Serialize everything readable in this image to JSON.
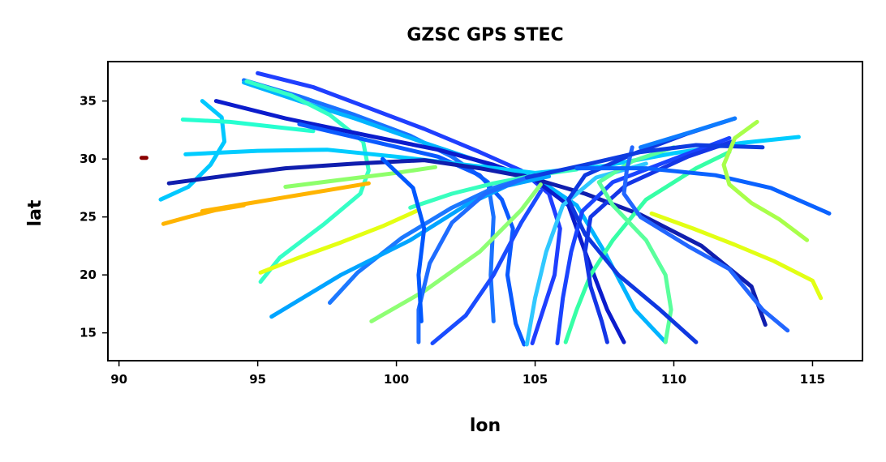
{
  "chart_data": {
    "type": "scatter",
    "title": "GZSC GPS STEC",
    "xlabel": "lon",
    "ylabel": "lat",
    "xlim": [
      89.6,
      116.8
    ],
    "ylim": [
      12.6,
      38.4
    ],
    "xticks": [
      90,
      95,
      100,
      105,
      110,
      115
    ],
    "yticks": [
      15,
      20,
      25,
      30,
      35
    ],
    "grid": false,
    "legend": "none",
    "colormap": "jet",
    "tracks": [
      {
        "color": "#1f3fff",
        "points": [
          [
            95.0,
            37.4
          ],
          [
            97.0,
            36.2
          ],
          [
            99.0,
            34.4
          ],
          [
            101.0,
            32.6
          ],
          [
            103.0,
            30.6
          ],
          [
            104.5,
            29.0
          ],
          [
            105.5,
            27.0
          ],
          [
            105.9,
            24.0
          ],
          [
            105.7,
            20.0
          ],
          [
            104.9,
            14.1
          ]
        ]
      },
      {
        "color": "#1a72ff",
        "points": [
          [
            94.5,
            36.8
          ],
          [
            96.5,
            35.4
          ],
          [
            98.5,
            33.8
          ],
          [
            100.5,
            32.0
          ],
          [
            102.0,
            30.2
          ],
          [
            103.3,
            28.0
          ],
          [
            103.5,
            25.0
          ],
          [
            103.4,
            20.0
          ],
          [
            103.5,
            16.0
          ]
        ]
      },
      {
        "color": "#00b4ff",
        "points": [
          [
            94.5,
            36.6
          ],
          [
            96.5,
            35.0
          ],
          [
            98.5,
            33.5
          ],
          [
            101.0,
            31.4
          ],
          [
            103.5,
            29.4
          ],
          [
            105.0,
            28.4
          ],
          [
            106.5,
            26.0
          ],
          [
            107.5,
            22.0
          ],
          [
            108.6,
            17.0
          ],
          [
            109.7,
            14.2
          ]
        ]
      },
      {
        "color": "#35ffc6",
        "points": [
          [
            94.6,
            36.7
          ],
          [
            96.2,
            35.5
          ],
          [
            97.6,
            33.8
          ],
          [
            98.8,
            31.5
          ],
          [
            99.0,
            29.0
          ],
          [
            98.7,
            27.0
          ],
          [
            97.4,
            24.4
          ],
          [
            95.8,
            21.5
          ],
          [
            95.1,
            19.4
          ]
        ]
      },
      {
        "color": "#0b1ccc",
        "points": [
          [
            93.5,
            35.0
          ],
          [
            96.0,
            33.5
          ],
          [
            99.0,
            32.0
          ],
          [
            101.5,
            30.8
          ],
          [
            103.5,
            29.5
          ],
          [
            105.0,
            28.2
          ],
          [
            106.2,
            26.0
          ],
          [
            106.8,
            22.0
          ],
          [
            107.6,
            17.0
          ],
          [
            108.2,
            14.2
          ]
        ]
      },
      {
        "color": "#00c8ff",
        "points": [
          [
            93.0,
            35.0
          ],
          [
            93.7,
            33.6
          ],
          [
            93.8,
            31.5
          ],
          [
            93.3,
            29.5
          ],
          [
            92.5,
            27.6
          ],
          [
            91.5,
            26.5
          ]
        ]
      },
      {
        "color": "#26ffd0",
        "points": [
          [
            92.3,
            33.4
          ],
          [
            94.0,
            33.2
          ],
          [
            95.5,
            32.8
          ],
          [
            97.0,
            32.4
          ]
        ]
      },
      {
        "color": "#0a5aff",
        "points": [
          [
            96.5,
            33.0
          ],
          [
            99.0,
            31.6
          ],
          [
            101.5,
            30.2
          ],
          [
            103.0,
            28.6
          ],
          [
            103.8,
            26.5
          ],
          [
            104.2,
            24.0
          ],
          [
            104.0,
            20.0
          ],
          [
            104.3,
            15.8
          ],
          [
            104.6,
            14.0
          ]
        ]
      },
      {
        "color": "#00ccff",
        "points": [
          [
            92.4,
            30.4
          ],
          [
            95.0,
            30.7
          ],
          [
            97.5,
            30.8
          ],
          [
            100.0,
            30.2
          ],
          [
            102.5,
            29.5
          ],
          [
            105.0,
            28.8
          ],
          [
            107.5,
            29.4
          ],
          [
            110.0,
            30.5
          ],
          [
            112.5,
            31.4
          ],
          [
            114.5,
            31.9
          ]
        ]
      },
      {
        "color": "#101eae",
        "points": [
          [
            91.8,
            27.9
          ],
          [
            94.0,
            28.6
          ],
          [
            96.0,
            29.2
          ],
          [
            98.5,
            29.6
          ],
          [
            101.0,
            29.9
          ],
          [
            103.0,
            29.2
          ],
          [
            104.8,
            28.4
          ],
          [
            106.8,
            27.0
          ],
          [
            108.8,
            25.2
          ],
          [
            111.0,
            22.5
          ],
          [
            112.8,
            19.0
          ],
          [
            113.3,
            15.7
          ]
        ]
      },
      {
        "color": "#ffb400",
        "points": [
          [
            91.6,
            24.4
          ],
          [
            92.5,
            25.0
          ],
          [
            93.5,
            25.6
          ],
          [
            94.5,
            26.0
          ]
        ]
      },
      {
        "color": "#ffb400",
        "points": [
          [
            93.0,
            25.5
          ],
          [
            94.5,
            26.1
          ],
          [
            96.0,
            26.7
          ],
          [
            97.5,
            27.3
          ],
          [
            99.0,
            27.9
          ]
        ]
      },
      {
        "color": "#8eff6a",
        "points": [
          [
            96.0,
            27.6
          ],
          [
            98.0,
            28.2
          ],
          [
            100.0,
            28.8
          ],
          [
            101.4,
            29.3
          ]
        ]
      },
      {
        "color": "#e4ff12",
        "points": [
          [
            95.1,
            20.2
          ],
          [
            96.5,
            21.5
          ],
          [
            98.0,
            22.8
          ],
          [
            99.5,
            24.2
          ],
          [
            100.8,
            25.6
          ]
        ]
      },
      {
        "color": "#38ffbe",
        "points": [
          [
            100.5,
            25.8
          ],
          [
            102.0,
            27.0
          ],
          [
            103.5,
            27.9
          ],
          [
            105.0,
            28.6
          ],
          [
            106.5,
            29.1
          ]
        ]
      },
      {
        "color": "#1c78ff",
        "points": [
          [
            97.6,
            17.6
          ],
          [
            98.6,
            20.2
          ],
          [
            100.2,
            23.2
          ],
          [
            102.0,
            25.8
          ],
          [
            103.5,
            27.5
          ],
          [
            105.0,
            28.6
          ]
        ]
      },
      {
        "color": "#00a4ff",
        "points": [
          [
            95.5,
            16.4
          ],
          [
            98.0,
            20.0
          ],
          [
            100.5,
            23.0
          ],
          [
            102.5,
            26.0
          ],
          [
            104.0,
            27.7
          ],
          [
            105.5,
            28.5
          ]
        ]
      },
      {
        "color": "#8eff74",
        "points": [
          [
            99.1,
            16.0
          ],
          [
            101.0,
            18.6
          ],
          [
            103.0,
            22.0
          ],
          [
            104.5,
            25.6
          ],
          [
            105.2,
            27.8
          ]
        ]
      },
      {
        "color": "#1e6cff",
        "points": [
          [
            100.8,
            14.2
          ],
          [
            100.8,
            17.0
          ],
          [
            101.2,
            21.0
          ],
          [
            102.0,
            24.5
          ],
          [
            103.2,
            27.0
          ],
          [
            104.8,
            28.5
          ]
        ]
      },
      {
        "color": "#0058ff",
        "points": [
          [
            99.5,
            30.0
          ],
          [
            100.6,
            27.5
          ],
          [
            101.0,
            24.0
          ],
          [
            100.8,
            20.0
          ],
          [
            100.9,
            16.0
          ]
        ]
      },
      {
        "color": "#1a4cff",
        "points": [
          [
            101.3,
            14.1
          ],
          [
            102.5,
            16.5
          ],
          [
            103.5,
            20.0
          ],
          [
            104.5,
            24.5
          ],
          [
            105.2,
            27.2
          ]
        ]
      },
      {
        "color": "#30c8ff",
        "points": [
          [
            104.7,
            14.0
          ],
          [
            105.0,
            18.0
          ],
          [
            105.4,
            22.0
          ],
          [
            106.0,
            26.0
          ],
          [
            107.2,
            28.4
          ],
          [
            109.0,
            29.6
          ]
        ]
      },
      {
        "color": "#1a44ff",
        "points": [
          [
            105.8,
            14.1
          ],
          [
            106.0,
            18.0
          ],
          [
            106.3,
            22.0
          ],
          [
            106.7,
            25.5
          ],
          [
            107.8,
            28.0
          ],
          [
            110.0,
            30.0
          ],
          [
            112.0,
            31.8
          ]
        ]
      },
      {
        "color": "#36ffa6",
        "points": [
          [
            106.1,
            14.2
          ],
          [
            106.5,
            17.0
          ],
          [
            107.0,
            20.0
          ],
          [
            107.8,
            23.0
          ],
          [
            109.0,
            26.5
          ],
          [
            110.8,
            29.2
          ],
          [
            112.0,
            30.6
          ]
        ]
      },
      {
        "color": "#1436e6",
        "points": [
          [
            107.6,
            14.2
          ],
          [
            107.4,
            16.0
          ],
          [
            107.0,
            19.0
          ],
          [
            106.8,
            22.0
          ],
          [
            107.0,
            25.0
          ],
          [
            108.3,
            27.8
          ],
          [
            110.5,
            30.2
          ],
          [
            112.1,
            31.5
          ]
        ]
      },
      {
        "color": "#5aff9c",
        "points": [
          [
            109.7,
            14.2
          ],
          [
            109.9,
            17.0
          ],
          [
            109.7,
            20.0
          ],
          [
            109.0,
            23.0
          ],
          [
            107.8,
            26.0
          ],
          [
            107.3,
            28.0
          ],
          [
            108.5,
            29.8
          ],
          [
            110.0,
            31.0
          ]
        ]
      },
      {
        "color": "#0f38e0",
        "points": [
          [
            110.8,
            14.2
          ],
          [
            109.5,
            17.0
          ],
          [
            108.0,
            20.0
          ],
          [
            106.8,
            23.5
          ],
          [
            106.2,
            26.5
          ],
          [
            106.8,
            28.6
          ],
          [
            108.5,
            30.4
          ],
          [
            110.5,
            32.2
          ],
          [
            112.2,
            33.5
          ]
        ]
      },
      {
        "color": "#2266ff",
        "points": [
          [
            108.5,
            31.0
          ],
          [
            108.3,
            29.0
          ],
          [
            108.2,
            27.0
          ],
          [
            108.8,
            25.0
          ],
          [
            110.5,
            22.5
          ],
          [
            112.0,
            20.5
          ],
          [
            113.2,
            17.0
          ],
          [
            114.1,
            15.2
          ]
        ]
      },
      {
        "color": "#0e7cff",
        "points": [
          [
            108.8,
            31.0
          ],
          [
            110.6,
            32.3
          ],
          [
            112.2,
            33.5
          ]
        ]
      },
      {
        "color": "#0e3ce0",
        "points": [
          [
            104.7,
            28.4
          ],
          [
            106.8,
            29.5
          ],
          [
            108.8,
            30.6
          ],
          [
            110.8,
            31.2
          ],
          [
            113.2,
            31.0
          ]
        ]
      },
      {
        "color": "#0a62ff",
        "points": [
          [
            106.5,
            29.2
          ],
          [
            109.0,
            29.2
          ],
          [
            111.5,
            28.6
          ],
          [
            113.5,
            27.5
          ],
          [
            115.6,
            25.3
          ]
        ]
      },
      {
        "color": "#a8ff4a",
        "points": [
          [
            113.0,
            33.2
          ],
          [
            112.2,
            31.8
          ],
          [
            111.8,
            29.5
          ],
          [
            112.0,
            27.8
          ],
          [
            112.8,
            26.2
          ],
          [
            113.8,
            24.8
          ],
          [
            114.8,
            23.0
          ]
        ]
      },
      {
        "color": "#e2ff14",
        "points": [
          [
            109.2,
            25.3
          ],
          [
            110.7,
            24.0
          ],
          [
            112.2,
            22.6
          ],
          [
            113.6,
            21.2
          ],
          [
            115.0,
            19.5
          ],
          [
            115.3,
            18.0
          ]
        ]
      }
    ],
    "outlier": {
      "x": 90.9,
      "y": 30.1,
      "color": "#8a0000"
    }
  }
}
